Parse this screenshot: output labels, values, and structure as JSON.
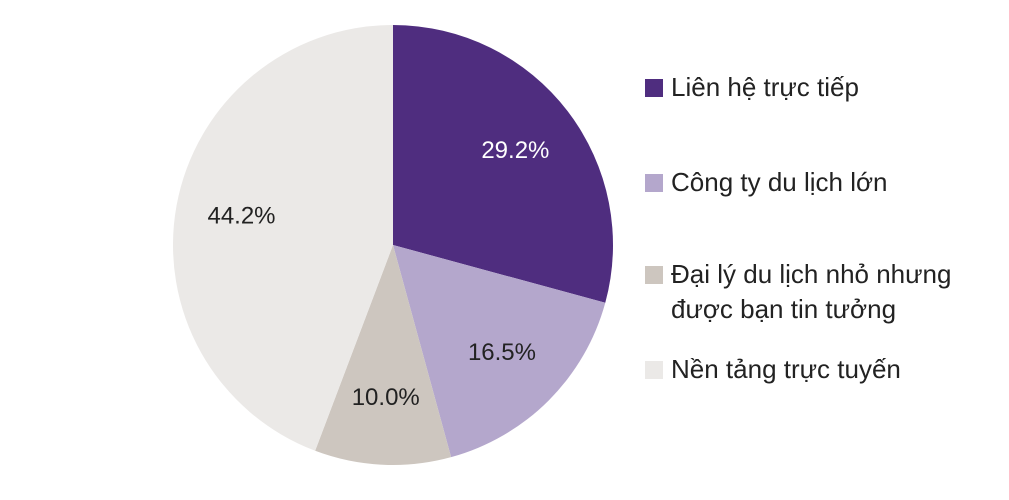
{
  "chart_data": {
    "type": "pie",
    "categories": [
      "Liên hệ trực tiếp",
      "Công ty du lịch lớn",
      "Đại lý du lịch nhỏ nhưng được bạn tin tưởng",
      "Nền tảng trực tuyến"
    ],
    "values": [
      29.2,
      16.5,
      10.0,
      44.2
    ],
    "value_labels": [
      "29.2%",
      "16.5%",
      "10.0%",
      "44.2%"
    ],
    "colors": [
      "#4f2d7f",
      "#b4a7cc",
      "#cdc6bf",
      "#ebe9e7"
    ],
    "legend": "right"
  }
}
